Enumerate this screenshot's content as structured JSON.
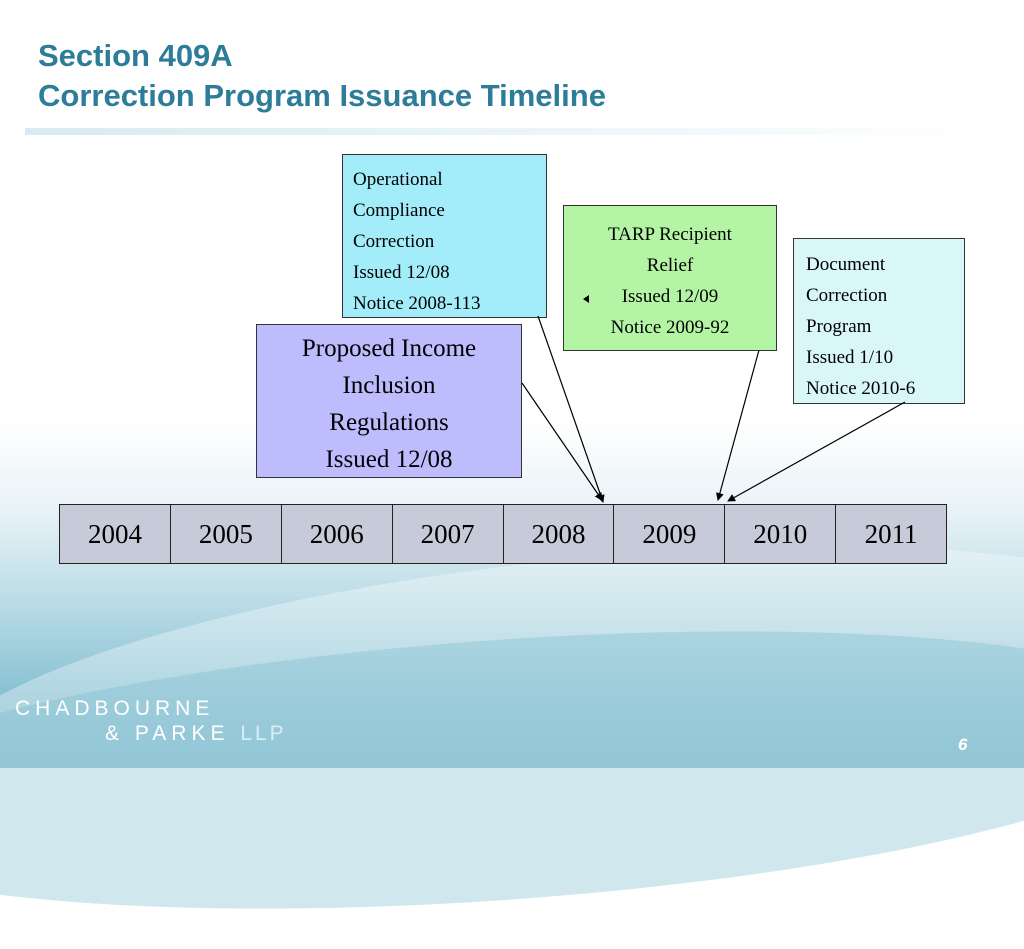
{
  "slide": {
    "title_line1": "Section 409A",
    "title_line2": "Correction Program Issuance Timeline",
    "page_number": "6"
  },
  "boxes": {
    "operational": {
      "lines": [
        "Operational",
        "Compliance",
        "Correction",
        "Issued 12/08",
        "Notice 2008-113"
      ],
      "color": "#a3ecf9"
    },
    "tarp": {
      "lines": [
        "TARP Recipient",
        "Relief",
        "Issued 12/09",
        "Notice 2009-92"
      ],
      "color": "#b4f5a5"
    },
    "document": {
      "lines": [
        "Document",
        "Correction",
        "Program",
        "Issued 1/10",
        "Notice 2010-6"
      ],
      "color": "#d9f6f9"
    },
    "proposed": {
      "lines": [
        "Proposed Income",
        "Inclusion",
        "Regulations",
        "Issued 12/08"
      ],
      "color": "#bdbcfd"
    }
  },
  "timeline": {
    "years": [
      "2004",
      "2005",
      "2006",
      "2007",
      "2008",
      "2009",
      "2010",
      "2011"
    ],
    "color": "#c7cbd9"
  },
  "logo": {
    "line1": "CHADBOURNE",
    "line2": "& PARKE",
    "suffix": "LLP"
  },
  "colors": {
    "title": "#2c7c9a"
  }
}
